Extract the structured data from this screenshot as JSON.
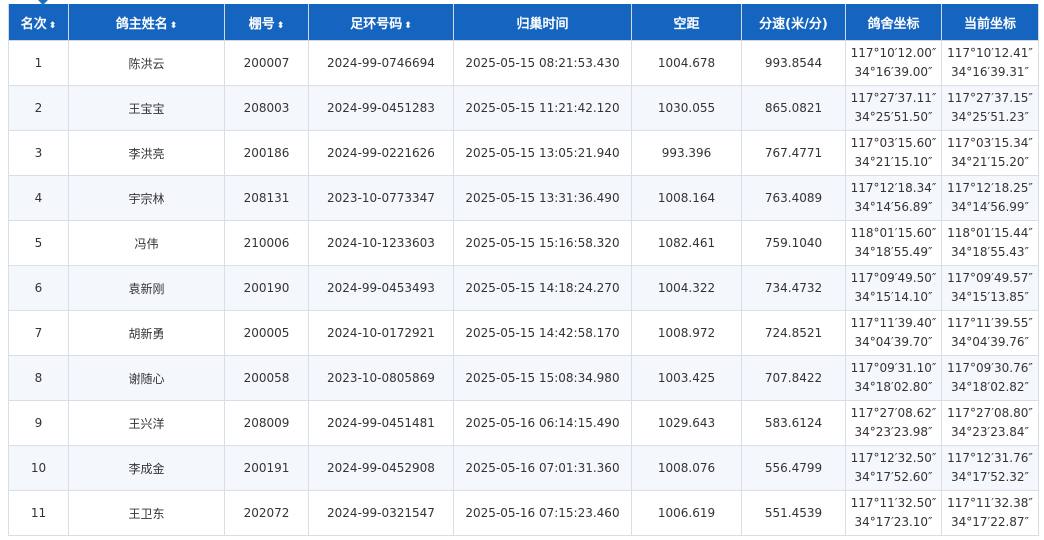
{
  "table": {
    "headers": [
      {
        "label": "名次",
        "sortable": true
      },
      {
        "label": "鸽主姓名",
        "sortable": true
      },
      {
        "label": "棚号",
        "sortable": true
      },
      {
        "label": "足环号码",
        "sortable": true
      },
      {
        "label": "归巢时间",
        "sortable": false
      },
      {
        "label": "空距",
        "sortable": false
      },
      {
        "label": "分速(米/分)",
        "sortable": false
      },
      {
        "label": "鸽舍坐标",
        "sortable": false
      },
      {
        "label": "当前坐标",
        "sortable": false
      }
    ],
    "sort_glyph": "⬍",
    "rows": [
      {
        "rank": "1",
        "name": "陈洪云",
        "loft": "200007",
        "ring": "2024-99-0746694",
        "time": "2025-05-15 08:21:53.430",
        "dist": "1004.678",
        "speed": "993.8544",
        "home1": "117°10′12.00″",
        "home2": "34°16′39.00″",
        "cur1": "117°10′12.41″",
        "cur2": "34°16′39.31″"
      },
      {
        "rank": "2",
        "name": "王宝宝",
        "loft": "208003",
        "ring": "2024-99-0451283",
        "time": "2025-05-15 11:21:42.120",
        "dist": "1030.055",
        "speed": "865.0821",
        "home1": "117°27′37.11″",
        "home2": "34°25′51.50″",
        "cur1": "117°27′37.15″",
        "cur2": "34°25′51.23″"
      },
      {
        "rank": "3",
        "name": "李洪亮",
        "loft": "200186",
        "ring": "2024-99-0221626",
        "time": "2025-05-15 13:05:21.940",
        "dist": "993.396",
        "speed": "767.4771",
        "home1": "117°03′15.60″",
        "home2": "34°21′15.10″",
        "cur1": "117°03′15.34″",
        "cur2": "34°21′15.20″"
      },
      {
        "rank": "4",
        "name": "宇宗林",
        "loft": "208131",
        "ring": "2023-10-0773347",
        "time": "2025-05-15 13:31:36.490",
        "dist": "1008.164",
        "speed": "763.4089",
        "home1": "117°12′18.34″",
        "home2": "34°14′56.89″",
        "cur1": "117°12′18.25″",
        "cur2": "34°14′56.99″"
      },
      {
        "rank": "5",
        "name": "冯伟",
        "loft": "210006",
        "ring": "2024-10-1233603",
        "time": "2025-05-15 15:16:58.320",
        "dist": "1082.461",
        "speed": "759.1040",
        "home1": "118°01′15.60″",
        "home2": "34°18′55.49″",
        "cur1": "118°01′15.44″",
        "cur2": "34°18′55.43″"
      },
      {
        "rank": "6",
        "name": "袁新刚",
        "loft": "200190",
        "ring": "2024-99-0453493",
        "time": "2025-05-15 14:18:24.270",
        "dist": "1004.322",
        "speed": "734.4732",
        "home1": "117°09′49.50″",
        "home2": "34°15′14.10″",
        "cur1": "117°09′49.57″",
        "cur2": "34°15′13.85″"
      },
      {
        "rank": "7",
        "name": "胡新勇",
        "loft": "200005",
        "ring": "2024-10-0172921",
        "time": "2025-05-15 14:42:58.170",
        "dist": "1008.972",
        "speed": "724.8521",
        "home1": "117°11′39.40″",
        "home2": "34°04′39.70″",
        "cur1": "117°11′39.55″",
        "cur2": "34°04′39.76″"
      },
      {
        "rank": "8",
        "name": "谢随心",
        "loft": "200058",
        "ring": "2023-10-0805869",
        "time": "2025-05-15 15:08:34.980",
        "dist": "1003.425",
        "speed": "707.8422",
        "home1": "117°09′31.10″",
        "home2": "34°18′02.80″",
        "cur1": "117°09′30.76″",
        "cur2": "34°18′02.82″"
      },
      {
        "rank": "9",
        "name": "王兴洋",
        "loft": "208009",
        "ring": "2024-99-0451481",
        "time": "2025-05-16 06:14:15.490",
        "dist": "1029.643",
        "speed": "583.6124",
        "home1": "117°27′08.62″",
        "home2": "34°23′23.98″",
        "cur1": "117°27′08.80″",
        "cur2": "34°23′23.84″"
      },
      {
        "rank": "10",
        "name": "李成金",
        "loft": "200191",
        "ring": "2024-99-0452908",
        "time": "2025-05-16 07:01:31.360",
        "dist": "1008.076",
        "speed": "556.4799",
        "home1": "117°12′32.50″",
        "home2": "34°17′52.60″",
        "cur1": "117°12′31.76″",
        "cur2": "34°17′52.32″"
      },
      {
        "rank": "11",
        "name": "王卫东",
        "loft": "202072",
        "ring": "2024-99-0321547",
        "time": "2025-05-16 07:15:23.460",
        "dist": "1006.619",
        "speed": "551.4539",
        "home1": "117°11′32.50″",
        "home2": "34°17′23.10″",
        "cur1": "117°11′32.38″",
        "cur2": "34°17′22.87″"
      }
    ]
  },
  "colors": {
    "header_bg": "#1565c0",
    "header_text": "#ffffff",
    "row_alt": "#f4f8fd",
    "border": "#d7dee7"
  }
}
